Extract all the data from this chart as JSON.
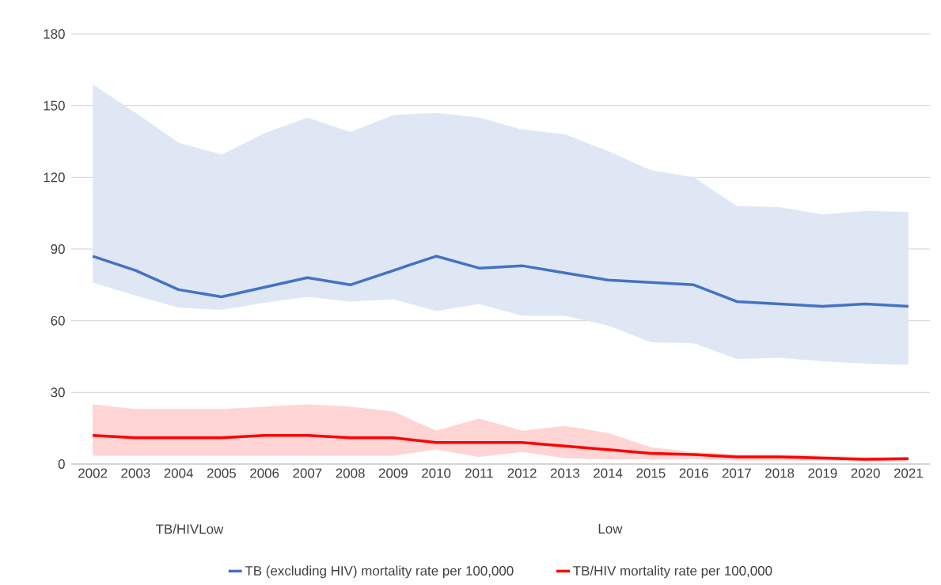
{
  "chart_data": {
    "type": "line",
    "categories": [
      "2002",
      "2003",
      "2004",
      "2005",
      "2006",
      "2007",
      "2008",
      "2009",
      "2010",
      "2011",
      "2012",
      "2013",
      "2014",
      "2015",
      "2016",
      "2017",
      "2018",
      "2019",
      "2020",
      "2021"
    ],
    "series": [
      {
        "name": "TB (excluding HIV) mortality rate per 100,000",
        "color": "#4472c4",
        "values": [
          87,
          81,
          73,
          70,
          74,
          78,
          75,
          81,
          87,
          82,
          83,
          80,
          77,
          76,
          75,
          68,
          67,
          66,
          67,
          66
        ],
        "lower": [
          76,
          70.5,
          65.5,
          64.5,
          67.5,
          70,
          68,
          69,
          64,
          67,
          62,
          62,
          58,
          51,
          50.5,
          44,
          44.5,
          43,
          42,
          41.5
        ],
        "upper": [
          159,
          147,
          134.5,
          129.5,
          138.5,
          145,
          139,
          146,
          147,
          145,
          140,
          138,
          131,
          123,
          120,
          108,
          107.5,
          104.5,
          106,
          105.5
        ]
      },
      {
        "name": "TB/HIV mortality rate per 100,000",
        "color": "#ff0000",
        "values": [
          12,
          11,
          11,
          11,
          12,
          12,
          11,
          11,
          9,
          9,
          9,
          7.5,
          6,
          4.5,
          4,
          3,
          3,
          2.5,
          2,
          2.2
        ],
        "lower": [
          3.5,
          3.5,
          3.5,
          3.5,
          3.5,
          3.5,
          3.5,
          3.5,
          6,
          3,
          5,
          2.5,
          2,
          2,
          2,
          1.5,
          1.5,
          1.5,
          1,
          1
        ],
        "upper": [
          25,
          23,
          23,
          23,
          24,
          25,
          24,
          22,
          14,
          19,
          14,
          16,
          13,
          7,
          5,
          4,
          4,
          3.5,
          3,
          3
        ]
      }
    ],
    "ylim": [
      0,
      180
    ],
    "yticks": [
      0,
      30,
      60,
      90,
      120,
      150,
      180
    ],
    "grid": "y",
    "legend": "bottom",
    "annotations": [
      "TB/HIVLow",
      "Low"
    ]
  }
}
